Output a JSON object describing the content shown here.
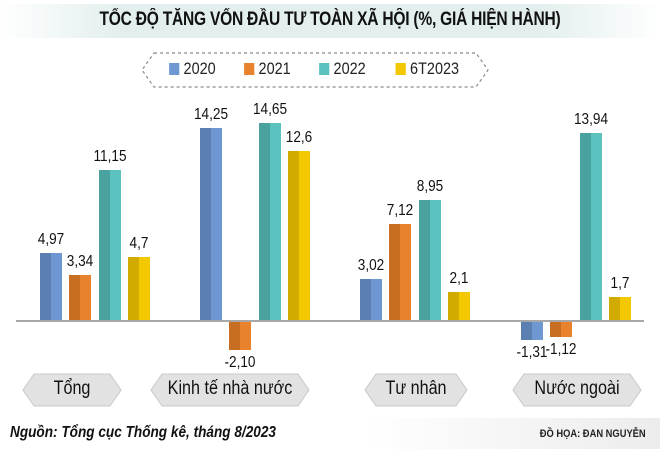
{
  "title": "TỐC ĐỘ TĂNG VỐN ĐẦU TƯ TOÀN XÃ HỘI (%, GIÁ HIỆN HÀNH)",
  "legend": [
    {
      "label": "2020",
      "color": "#6f98d3"
    },
    {
      "label": "2021",
      "color": "#e8822c"
    },
    {
      "label": "2022",
      "color": "#5cc2c0"
    },
    {
      "label": "6T2023",
      "color": "#f4c800"
    }
  ],
  "categories": [
    "Tổng",
    "Kinh tế nhà nước",
    "Tư nhân",
    "Nước ngoài"
  ],
  "labels": {
    "g0": [
      "4,97",
      "3,34",
      "11,15",
      "4,7"
    ],
    "g1": [
      "14,25",
      "-2,10",
      "14,65",
      "12,6"
    ],
    "g2": [
      "3,02",
      "7,12",
      "8,95",
      "2,1"
    ],
    "g3": [
      "-1,31",
      "-1,12",
      "13,94",
      "1,7"
    ]
  },
  "footer": {
    "source": "Nguồn: Tổng cục Thống kê, tháng 8/2023",
    "credit": "ĐỒ HỌA: ĐAN NGUYỄN"
  },
  "chart_data": {
    "type": "bar",
    "title": "TỐC ĐỘ TĂNG VỐN ĐẦU TƯ TOÀN XÃ HỘI (%, GIÁ HIỆN HÀNH)",
    "categories": [
      "Tổng",
      "Kinh tế nhà nước",
      "Tư nhân",
      "Nước ngoài"
    ],
    "series": [
      {
        "name": "2020",
        "values": [
          4.97,
          14.25,
          3.02,
          -1.31
        ],
        "color": "#6f98d3"
      },
      {
        "name": "2021",
        "values": [
          3.34,
          -2.1,
          7.12,
          -1.12
        ],
        "color": "#e8822c"
      },
      {
        "name": "2022",
        "values": [
          11.15,
          14.65,
          8.95,
          13.94
        ],
        "color": "#5cc2c0"
      },
      {
        "name": "6T2023",
        "values": [
          4.7,
          12.6,
          2.1,
          1.7
        ],
        "color": "#f4c800"
      }
    ],
    "xlabel": "",
    "ylabel": "%",
    "ylim": [
      -3,
      15
    ],
    "grid": false,
    "legend_position": "top",
    "data_labels": true,
    "source": "Nguồn: Tổng cục Thống kê, tháng 8/2023"
  }
}
